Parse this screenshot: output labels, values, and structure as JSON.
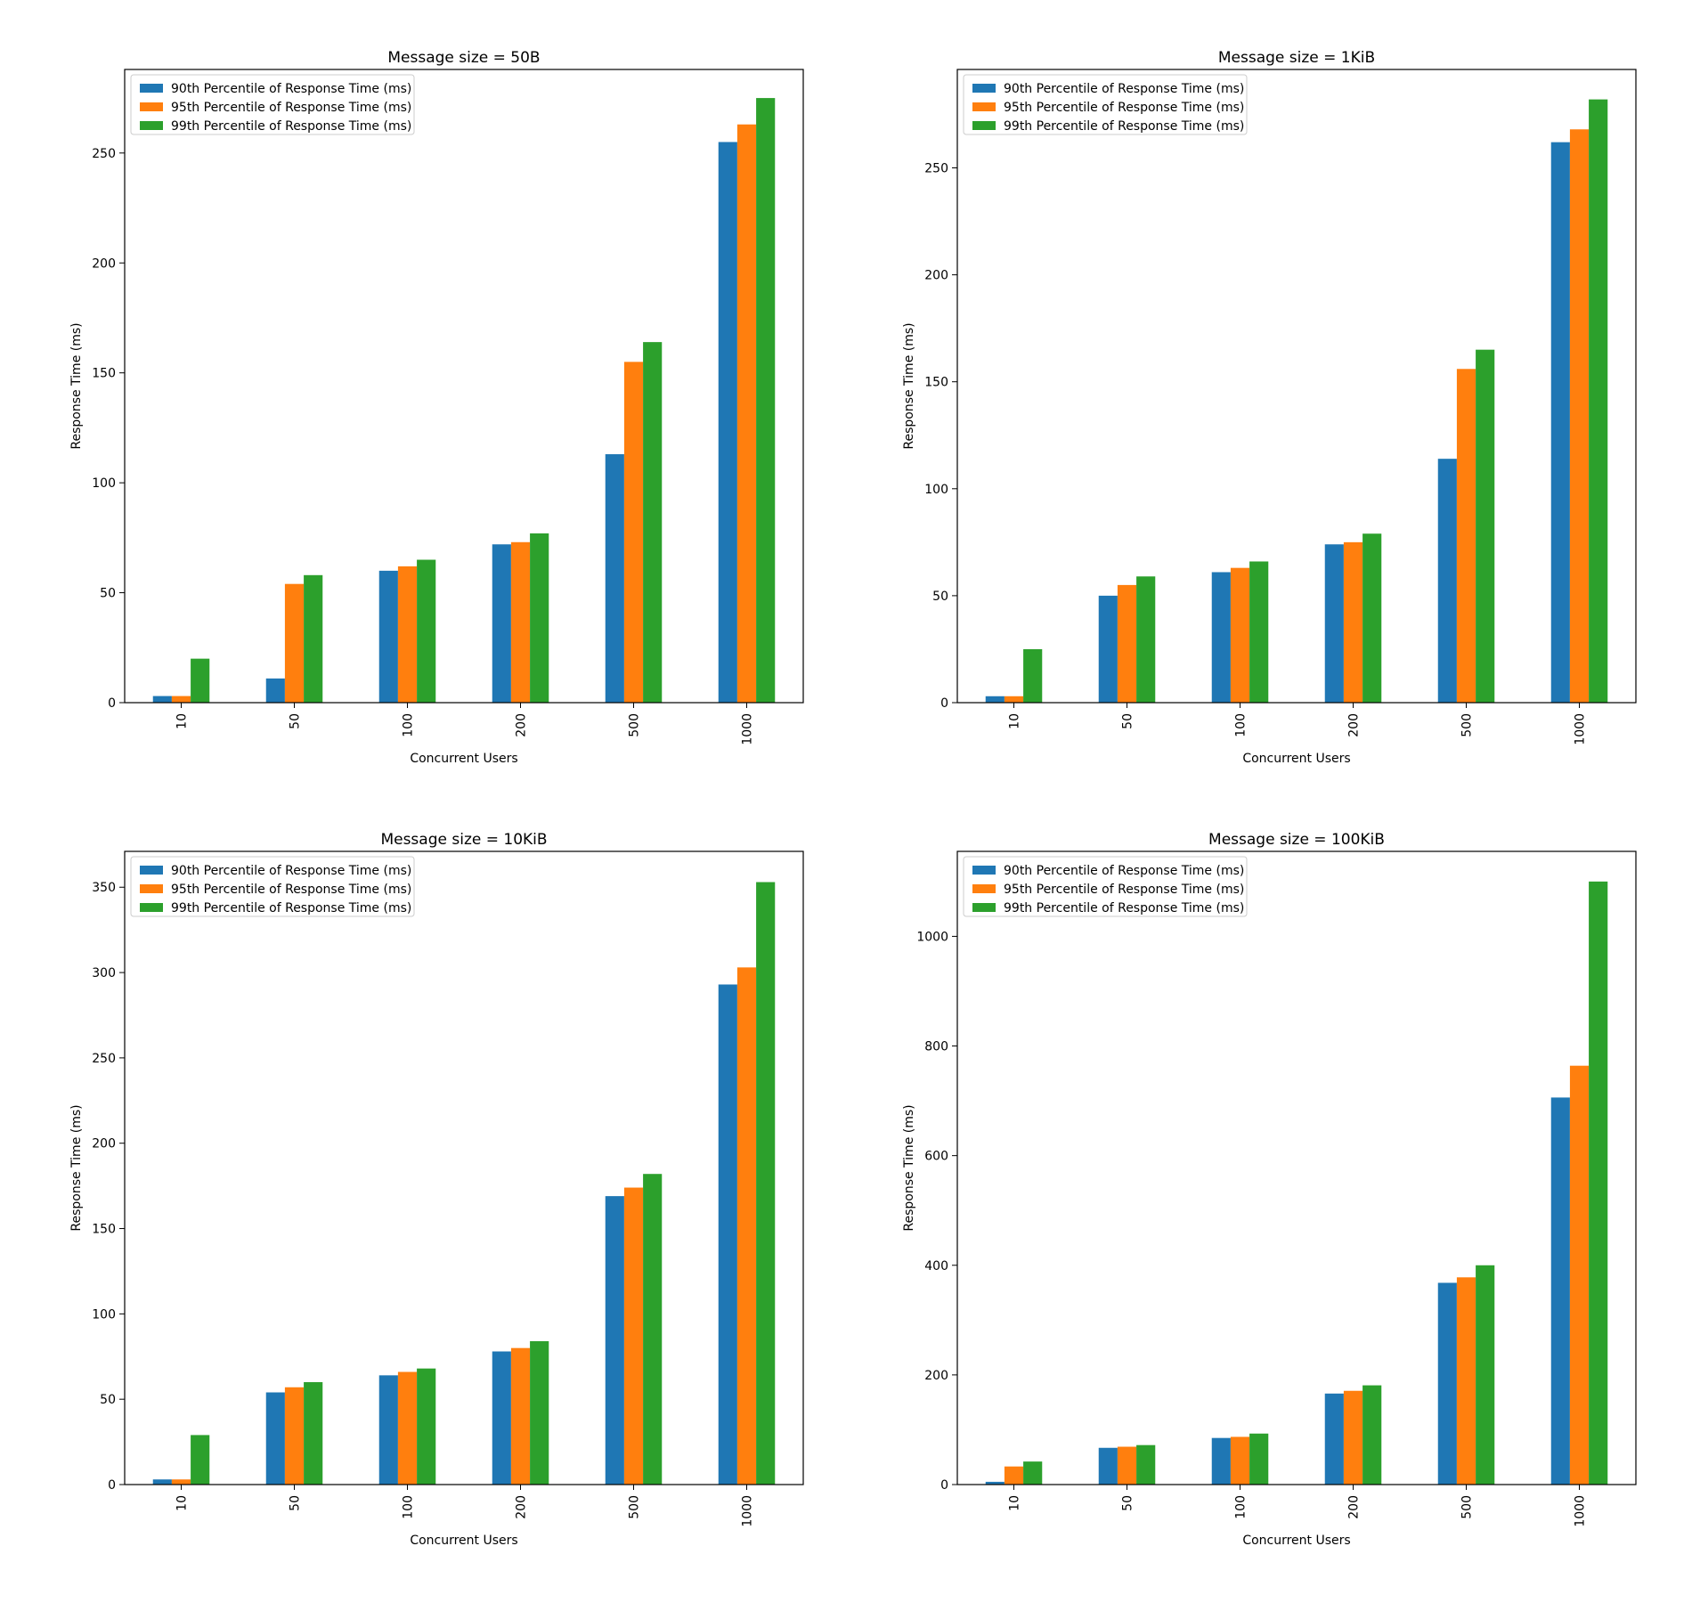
{
  "colors": {
    "p90": "#1f77b4",
    "p95": "#ff7f0e",
    "p99": "#2ca02c"
  },
  "chart_data": [
    {
      "type": "bar",
      "title": "Message size = 50B",
      "xlabel": "Concurrent Users",
      "ylabel": "Response Time (ms)",
      "ylim": [
        0,
        288
      ],
      "yticks": [
        0,
        50,
        100,
        150,
        200,
        250
      ],
      "legend": "top-left",
      "categories": [
        "10",
        "50",
        "100",
        "200",
        "500",
        "1000"
      ],
      "series": [
        {
          "name": "90th Percentile of Response Time (ms)",
          "values": [
            3,
            11,
            60,
            72,
            113,
            255
          ]
        },
        {
          "name": "95th Percentile of Response Time (ms)",
          "values": [
            3,
            54,
            62,
            73,
            155,
            263
          ]
        },
        {
          "name": "99th Percentile of Response Time (ms)",
          "values": [
            20,
            58,
            65,
            77,
            164,
            275
          ]
        }
      ]
    },
    {
      "type": "bar",
      "title": "Message size = 1KiB",
      "xlabel": "Concurrent Users",
      "ylabel": "Response Time (ms)",
      "ylim": [
        0,
        296
      ],
      "yticks": [
        0,
        50,
        100,
        150,
        200,
        250
      ],
      "legend": "top-left",
      "categories": [
        "10",
        "50",
        "100",
        "200",
        "500",
        "1000"
      ],
      "series": [
        {
          "name": "90th Percentile of Response Time (ms)",
          "values": [
            3,
            50,
            61,
            74,
            114,
            262
          ]
        },
        {
          "name": "95th Percentile of Response Time (ms)",
          "values": [
            3,
            55,
            63,
            75,
            156,
            268
          ]
        },
        {
          "name": "99th Percentile of Response Time (ms)",
          "values": [
            25,
            59,
            66,
            79,
            165,
            282
          ]
        }
      ]
    },
    {
      "type": "bar",
      "title": "Message size = 10KiB",
      "xlabel": "Concurrent Users",
      "ylabel": "Response Time (ms)",
      "ylim": [
        0,
        371
      ],
      "yticks": [
        0,
        50,
        100,
        150,
        200,
        250,
        300,
        350
      ],
      "legend": "top-left",
      "categories": [
        "10",
        "50",
        "100",
        "200",
        "500",
        "1000"
      ],
      "series": [
        {
          "name": "90th Percentile of Response Time (ms)",
          "values": [
            3,
            54,
            64,
            78,
            169,
            293
          ]
        },
        {
          "name": "95th Percentile of Response Time (ms)",
          "values": [
            3,
            57,
            66,
            80,
            174,
            303
          ]
        },
        {
          "name": "99th Percentile of Response Time (ms)",
          "values": [
            29,
            60,
            68,
            84,
            182,
            353
          ]
        }
      ]
    },
    {
      "type": "bar",
      "title": "Message size = 100KiB",
      "xlabel": "Concurrent Users",
      "ylabel": "Response Time (ms)",
      "ylim": [
        0,
        1155
      ],
      "yticks": [
        0,
        200,
        400,
        600,
        800,
        1000
      ],
      "legend": "top-left",
      "categories": [
        "10",
        "50",
        "100",
        "200",
        "500",
        "1000"
      ],
      "series": [
        {
          "name": "90th Percentile of Response Time (ms)",
          "values": [
            5,
            67,
            85,
            166,
            368,
            706
          ]
        },
        {
          "name": "95th Percentile of Response Time (ms)",
          "values": [
            33,
            69,
            87,
            171,
            378,
            764
          ]
        },
        {
          "name": "99th Percentile of Response Time (ms)",
          "values": [
            42,
            72,
            93,
            181,
            400,
            1100
          ]
        }
      ]
    }
  ]
}
